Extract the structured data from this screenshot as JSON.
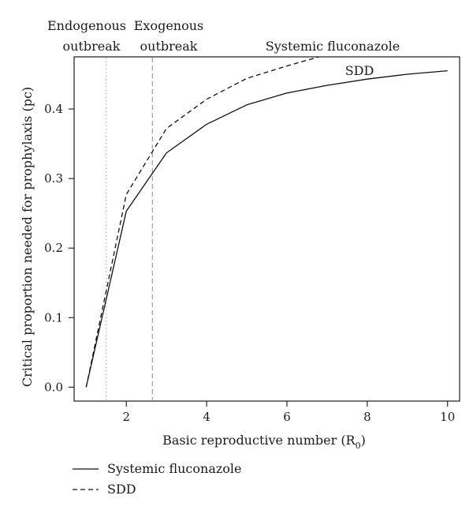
{
  "chart_data": {
    "type": "line",
    "xlabel": "Basic reproductive number (R",
    "xlabel_sub": "0",
    "xlabel_close": ")",
    "ylabel": "Critical proportion needed for prophylaxis (pc)",
    "xlim": [
      0.7,
      10.3
    ],
    "ylim": [
      -0.02,
      0.475
    ],
    "xticks": [
      2,
      4,
      6,
      8,
      10
    ],
    "yticks": [
      0.0,
      0.1,
      0.2,
      0.3,
      0.4
    ],
    "ytick_labels": [
      "0.0",
      "0.1",
      "0.2",
      "0.3",
      "0.4"
    ],
    "grid": false,
    "legend_position": "bottom-left, below plot",
    "series": [
      {
        "name": "Systemic fluconazole",
        "style": "solid",
        "color": "#111111",
        "x": [
          1,
          2,
          3,
          4,
          5,
          6,
          7,
          8,
          9,
          10
        ],
        "y": [
          0.0,
          0.253,
          0.337,
          0.378,
          0.406,
          0.423,
          0.434,
          0.443,
          0.45,
          0.455
        ]
      },
      {
        "name": "SDD",
        "style": "dashed",
        "color": "#111111",
        "x": [
          1,
          2,
          3,
          4,
          5,
          6,
          6.8
        ],
        "y": [
          0.0,
          0.277,
          0.372,
          0.414,
          0.444,
          0.462,
          0.475
        ]
      }
    ],
    "vertical_lines": [
      {
        "x": 1.5,
        "style": "dotted",
        "color": "#bbbbbb"
      },
      {
        "x": 2.65,
        "style": "dashed",
        "color": "#aaaaaa"
      }
    ],
    "annotations": [
      {
        "id": "endogenous",
        "lines": [
          "Endogenous",
          "outbreak"
        ]
      },
      {
        "id": "exogenous",
        "lines": [
          "Exogenous",
          "outbreak"
        ]
      },
      {
        "id": "label-fluconazole",
        "text": "Systemic fluconazole"
      },
      {
        "id": "label-sdd",
        "text": "SDD"
      }
    ],
    "legend": [
      {
        "label": "Systemic fluconazole",
        "style": "solid"
      },
      {
        "label": "SDD",
        "style": "dashed"
      }
    ]
  }
}
